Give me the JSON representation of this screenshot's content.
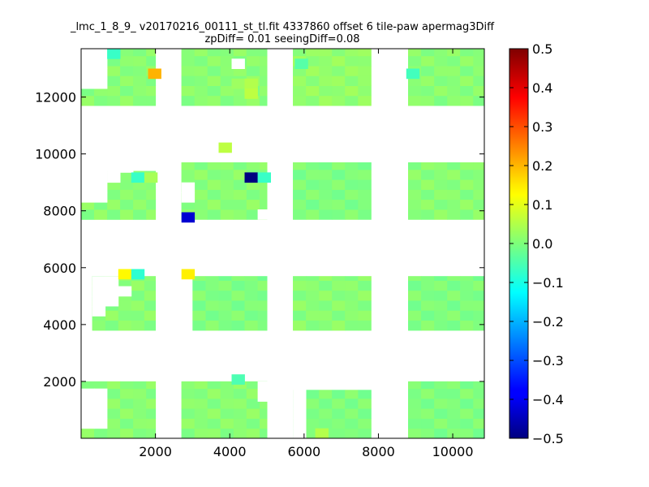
{
  "chart_data": {
    "type": "heatmap",
    "title_line1": "_lmc_1_8_9_ v20170216_00111_st_tl.fit 4337860 offset 6 tile-paw apermag3Diff",
    "title_line2": "zpDiff= 0.01 seeingDiff=0.08",
    "xlim": [
      0,
      10850
    ],
    "ylim": [
      0,
      13700
    ],
    "xticks": [
      2000,
      4000,
      6000,
      8000,
      10000
    ],
    "xtick_labels": [
      "2000",
      "4000",
      "6000",
      "8000",
      "10000"
    ],
    "yticks": [
      2000,
      4000,
      6000,
      8000,
      10000,
      12000
    ],
    "ytick_labels": [
      "2000",
      "4000",
      "6000",
      "8000",
      "10000",
      "12000"
    ],
    "colorbar": {
      "colormap": "jet",
      "range": [
        -0.5,
        0.5
      ],
      "ticks": [
        0.5,
        0.4,
        0.3,
        0.2,
        0.1,
        0.0,
        -0.1,
        -0.2,
        -0.3,
        -0.4,
        -0.5
      ],
      "tick_labels": [
        "0.5",
        "0.4",
        "0.3",
        "0.2",
        "0.1",
        "0.0",
        "−0.1",
        "−0.2",
        "−0.3",
        "−0.4",
        "−0.5"
      ]
    },
    "cell_size": 350,
    "regions": [
      {
        "name": "r1c1",
        "x": [
          0,
          2000
        ],
        "y": [
          0,
          2000
        ],
        "value": 0.01
      },
      {
        "name": "r1c2",
        "x": [
          2700,
          5000
        ],
        "y": [
          0,
          2000
        ],
        "value": 0.01
      },
      {
        "name": "r1c3",
        "x": [
          5700,
          7800
        ],
        "y": [
          0,
          1700
        ],
        "value": 0.0
      },
      {
        "name": "r1c4",
        "x": [
          8800,
          10850
        ],
        "y": [
          0,
          2000
        ],
        "value": 0.0
      },
      {
        "name": "r2c1",
        "x": [
          300,
          2000
        ],
        "y": [
          3800,
          5700
        ],
        "value": 0.01
      },
      {
        "name": "r2c2",
        "x": [
          3000,
          5000
        ],
        "y": [
          3800,
          5700
        ],
        "value": 0.0
      },
      {
        "name": "r2c3",
        "x": [
          5700,
          7800
        ],
        "y": [
          3800,
          5700
        ],
        "value": 0.01
      },
      {
        "name": "r2c4",
        "x": [
          8800,
          10850
        ],
        "y": [
          3800,
          5700
        ],
        "value": 0.0
      },
      {
        "name": "r3c1",
        "x": [
          0,
          2000
        ],
        "y": [
          7700,
          9400
        ],
        "value": 0.01
      },
      {
        "name": "r3c2",
        "x": [
          2700,
          5000
        ],
        "y": [
          7700,
          9700
        ],
        "value": 0.01
      },
      {
        "name": "r3c3",
        "x": [
          5700,
          7800
        ],
        "y": [
          7700,
          9700
        ],
        "value": 0.0
      },
      {
        "name": "r3c4",
        "x": [
          8800,
          10850
        ],
        "y": [
          7700,
          9700
        ],
        "value": 0.01
      },
      {
        "name": "r4c1",
        "x": [
          0,
          2000
        ],
        "y": [
          11700,
          13700
        ],
        "value": 0.01
      },
      {
        "name": "r4c2",
        "x": [
          2700,
          5000
        ],
        "y": [
          11700,
          13700
        ],
        "value": 0.01
      },
      {
        "name": "r4c3",
        "x": [
          5700,
          7800
        ],
        "y": [
          11700,
          13700
        ],
        "value": 0.02
      },
      {
        "name": "r4c4",
        "x": [
          8800,
          10850
        ],
        "y": [
          11700,
          13700
        ],
        "value": 0.01
      }
    ],
    "cells": [
      {
        "x": 700,
        "y": 13350,
        "value": -0.07
      },
      {
        "x": 1800,
        "y": 12650,
        "value": 0.2
      },
      {
        "x": 4050,
        "y": 12300,
        "value": 0.03
      },
      {
        "x": 4400,
        "y": 12300,
        "value": 0.05
      },
      {
        "x": 4400,
        "y": 11950,
        "value": 0.06
      },
      {
        "x": 5750,
        "y": 13000,
        "value": -0.04
      },
      {
        "x": 8750,
        "y": 12650,
        "value": -0.06
      },
      {
        "x": 3700,
        "y": 10050,
        "value": 0.06
      },
      {
        "x": 1350,
        "y": 9000,
        "value": -0.07
      },
      {
        "x": 1700,
        "y": 9000,
        "value": 0.04
      },
      {
        "x": 4400,
        "y": 9000,
        "value": -0.5
      },
      {
        "x": 4750,
        "y": 9000,
        "value": -0.07
      },
      {
        "x": 2700,
        "y": 7600,
        "value": -0.42
      },
      {
        "x": 1000,
        "y": 5600,
        "value": 0.13
      },
      {
        "x": 1350,
        "y": 5600,
        "value": -0.08
      },
      {
        "x": 2700,
        "y": 5600,
        "value": 0.14
      },
      {
        "x": 4050,
        "y": 1900,
        "value": -0.05
      },
      {
        "x": 6300,
        "y": 0,
        "value": 0.05
      }
    ],
    "blank_cells": [
      {
        "x": 0,
        "y": 13350
      },
      {
        "x": 350,
        "y": 13350
      },
      {
        "x": 0,
        "y": 13000
      },
      {
        "x": 350,
        "y": 13000
      },
      {
        "x": 0,
        "y": 12650
      },
      {
        "x": 350,
        "y": 12650
      },
      {
        "x": 0,
        "y": 12300
      },
      {
        "x": 350,
        "y": 12300
      },
      {
        "x": 4050,
        "y": 13000
      },
      {
        "x": 0,
        "y": 9350
      },
      {
        "x": 350,
        "y": 9350
      },
      {
        "x": 700,
        "y": 9350
      },
      {
        "x": 1050,
        "y": 9350
      },
      {
        "x": 0,
        "y": 9000
      },
      {
        "x": 350,
        "y": 9000
      },
      {
        "x": 700,
        "y": 9000
      },
      {
        "x": 0,
        "y": 8650
      },
      {
        "x": 350,
        "y": 8650
      },
      {
        "x": 0,
        "y": 8300
      },
      {
        "x": 350,
        "y": 8300
      },
      {
        "x": 2700,
        "y": 8650
      },
      {
        "x": 2700,
        "y": 8300
      },
      {
        "x": 4750,
        "y": 7700
      },
      {
        "x": 300,
        "y": 5350
      },
      {
        "x": 650,
        "y": 5350
      },
      {
        "x": 300,
        "y": 5000
      },
      {
        "x": 650,
        "y": 5000
      },
      {
        "x": 1000,
        "y": 5000
      },
      {
        "x": 300,
        "y": 4650
      },
      {
        "x": 650,
        "y": 4650
      },
      {
        "x": 300,
        "y": 4300
      },
      {
        "x": 4750,
        "y": 1650
      },
      {
        "x": 4750,
        "y": 1300
      },
      {
        "x": 5700,
        "y": 0
      },
      {
        "x": 5700,
        "y": 350
      },
      {
        "x": 5700,
        "y": 700
      },
      {
        "x": 5700,
        "y": 1050
      },
      {
        "x": 5700,
        "y": 1400
      },
      {
        "x": 0,
        "y": 350
      },
      {
        "x": 350,
        "y": 350
      },
      {
        "x": 0,
        "y": 700
      },
      {
        "x": 350,
        "y": 700
      },
      {
        "x": 0,
        "y": 1050
      },
      {
        "x": 350,
        "y": 1050
      },
      {
        "x": 0,
        "y": 1400
      },
      {
        "x": 350,
        "y": 1400
      }
    ]
  }
}
